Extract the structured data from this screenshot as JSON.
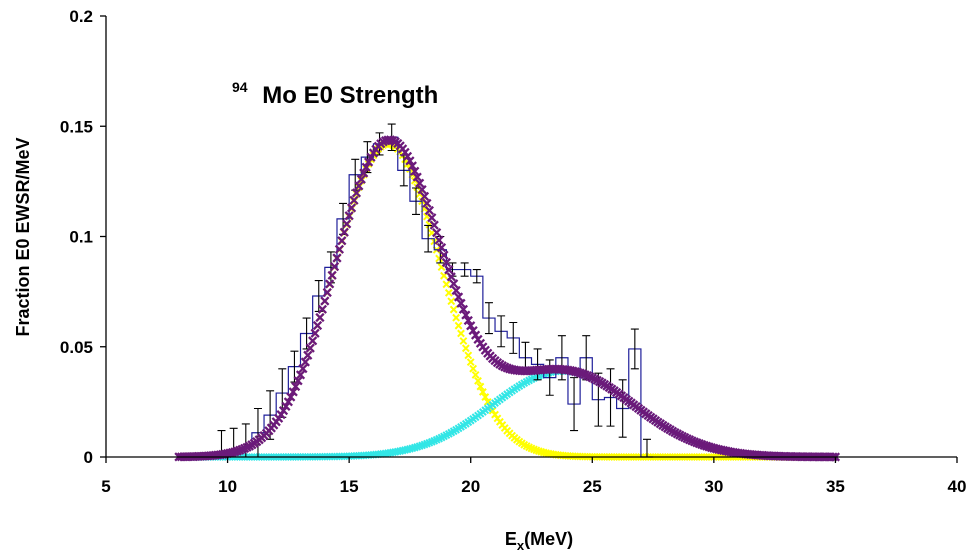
{
  "chart_data": {
    "type": "line",
    "title_mass": "94",
    "title_text": "Mo E0 Strength",
    "xlabel_main": "E",
    "xlabel_sub": "x",
    "xlabel_rest": "(MeV)",
    "ylabel": "Fraction E0 EWSR/MeV",
    "xlim": [
      5,
      40
    ],
    "ylim": [
      0,
      0.2
    ],
    "xticks": [
      "5",
      "10",
      "15",
      "20",
      "25",
      "30",
      "35",
      "40"
    ],
    "yticks": [
      "0",
      "0.05",
      "0.1",
      "0.15",
      "0.2"
    ],
    "grid": false,
    "colors": {
      "histogram": "#1f1f9a",
      "errorbar": "#000000",
      "gaussian_low": "#ffff00",
      "gaussian_high": "#33e6e6",
      "total_fit": "#6b1a7a"
    },
    "histogram": {
      "bin_width": 0.5,
      "x": [
        9.75,
        10.25,
        10.75,
        11.25,
        11.75,
        12.25,
        12.75,
        13.25,
        13.75,
        14.25,
        14.75,
        15.25,
        15.75,
        16.25,
        16.75,
        17.25,
        17.75,
        18.25,
        18.75,
        19.25,
        19.75,
        20.25,
        20.75,
        21.25,
        21.75,
        22.25,
        22.75,
        23.25,
        23.75,
        24.25,
        24.75,
        25.25,
        25.75,
        26.25,
        26.75,
        27.25
      ],
      "y": [
        0.001,
        0.002,
        0.004,
        0.011,
        0.019,
        0.029,
        0.041,
        0.056,
        0.073,
        0.086,
        0.108,
        0.128,
        0.136,
        0.142,
        0.145,
        0.13,
        0.116,
        0.099,
        0.094,
        0.085,
        0.085,
        0.082,
        0.063,
        0.057,
        0.054,
        0.045,
        0.042,
        0.036,
        0.045,
        0.024,
        0.045,
        0.026,
        0.027,
        0.022,
        0.049,
        0.0
      ],
      "err": [
        0.011,
        0.011,
        0.011,
        0.011,
        0.011,
        0.011,
        0.007,
        0.007,
        0.007,
        0.007,
        0.007,
        0.007,
        0.007,
        0.005,
        0.006,
        0.007,
        0.006,
        0.006,
        0.006,
        0.003,
        0.003,
        0.003,
        0.007,
        0.007,
        0.007,
        0.007,
        0.007,
        0.008,
        0.01,
        0.012,
        0.01,
        0.012,
        0.013,
        0.013,
        0.009,
        0.008
      ]
    },
    "series": [
      {
        "kind": "gaussian",
        "center": 16.6,
        "sigma": 2.2,
        "amplitude": 0.142
      },
      {
        "kind": "gaussian",
        "center": 23.8,
        "sigma": 2.9,
        "amplitude": 0.039
      },
      {
        "kind": "sum",
        "x_range": [
          8,
          35
        ]
      }
    ]
  }
}
